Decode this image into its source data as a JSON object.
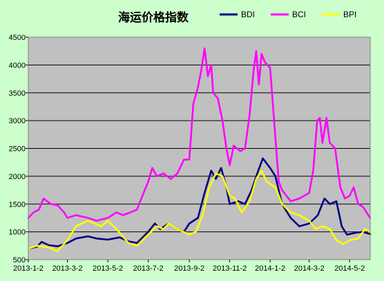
{
  "chart_data": {
    "type": "line",
    "title": "海运价格指数",
    "xlabel": "",
    "ylabel": "",
    "ylim": [
      500,
      4500
    ],
    "yticks": [
      500,
      1000,
      1500,
      2000,
      2500,
      3000,
      3500,
      4000,
      4500
    ],
    "xticks": [
      "2013-1-2",
      "2013-3-2",
      "2013-5-2",
      "2013-7-2",
      "2013-9-2",
      "2013-11-2",
      "2014-1-2",
      "2014-3-2",
      "2014-5-2"
    ],
    "grid": "horizontal",
    "legend_position": "top-right",
    "plot_background": "#c0c0c0",
    "page_background": "#ccffcc",
    "series": [
      {
        "name": "BDI",
        "color": "#000080",
        "points": [
          [
            "2013-01-02",
            700
          ],
          [
            "2013-01-15",
            730
          ],
          [
            "2013-01-22",
            820
          ],
          [
            "2013-02-02",
            760
          ],
          [
            "2013-02-15",
            740
          ],
          [
            "2013-03-02",
            800
          ],
          [
            "2013-03-15",
            880
          ],
          [
            "2013-04-02",
            920
          ],
          [
            "2013-04-15",
            880
          ],
          [
            "2013-05-02",
            860
          ],
          [
            "2013-05-20",
            900
          ],
          [
            "2013-06-02",
            830
          ],
          [
            "2013-06-15",
            800
          ],
          [
            "2013-07-02",
            1000
          ],
          [
            "2013-07-12",
            1150
          ],
          [
            "2013-07-20",
            1050
          ],
          [
            "2013-08-02",
            1150
          ],
          [
            "2013-08-15",
            1050
          ],
          [
            "2013-08-25",
            1000
          ],
          [
            "2013-09-02",
            1150
          ],
          [
            "2013-09-15",
            1250
          ],
          [
            "2013-09-25",
            1700
          ],
          [
            "2013-10-05",
            2100
          ],
          [
            "2013-10-12",
            1950
          ],
          [
            "2013-10-20",
            2150
          ],
          [
            "2013-10-28",
            1800
          ],
          [
            "2013-11-02",
            1500
          ],
          [
            "2013-11-15",
            1550
          ],
          [
            "2013-11-25",
            1500
          ],
          [
            "2013-12-05",
            1750
          ],
          [
            "2013-12-15",
            2100
          ],
          [
            "2013-12-22",
            2320
          ],
          [
            "2014-01-02",
            2150
          ],
          [
            "2014-01-10",
            2000
          ],
          [
            "2014-01-20",
            1500
          ],
          [
            "2014-02-02",
            1250
          ],
          [
            "2014-02-15",
            1100
          ],
          [
            "2014-03-02",
            1150
          ],
          [
            "2014-03-15",
            1300
          ],
          [
            "2014-03-25",
            1600
          ],
          [
            "2014-04-02",
            1500
          ],
          [
            "2014-04-12",
            1550
          ],
          [
            "2014-04-20",
            1100
          ],
          [
            "2014-04-28",
            950
          ],
          [
            "2014-05-10",
            980
          ],
          [
            "2014-05-22",
            1000
          ],
          [
            "2014-06-02",
            960
          ]
        ]
      },
      {
        "name": "BCI",
        "color": "#ff00ff",
        "points": [
          [
            "2013-01-02",
            1250
          ],
          [
            "2013-01-10",
            1350
          ],
          [
            "2013-01-18",
            1400
          ],
          [
            "2013-01-25",
            1600
          ],
          [
            "2013-02-05",
            1500
          ],
          [
            "2013-02-15",
            1480
          ],
          [
            "2013-02-25",
            1350
          ],
          [
            "2013-03-02",
            1250
          ],
          [
            "2013-03-15",
            1300
          ],
          [
            "2013-04-02",
            1250
          ],
          [
            "2013-04-15",
            1200
          ],
          [
            "2013-05-02",
            1250
          ],
          [
            "2013-05-15",
            1350
          ],
          [
            "2013-05-25",
            1300
          ],
          [
            "2013-06-05",
            1350
          ],
          [
            "2013-06-15",
            1400
          ],
          [
            "2013-06-25",
            1700
          ],
          [
            "2013-07-02",
            1900
          ],
          [
            "2013-07-08",
            2150
          ],
          [
            "2013-07-15",
            2000
          ],
          [
            "2013-07-25",
            2050
          ],
          [
            "2013-08-05",
            1950
          ],
          [
            "2013-08-15",
            2050
          ],
          [
            "2013-08-25",
            2300
          ],
          [
            "2013-09-02",
            2300
          ],
          [
            "2013-09-08",
            3300
          ],
          [
            "2013-09-15",
            3600
          ],
          [
            "2013-09-20",
            3900
          ],
          [
            "2013-09-25",
            4300
          ],
          [
            "2013-09-30",
            3800
          ],
          [
            "2013-10-05",
            4000
          ],
          [
            "2013-10-08",
            3500
          ],
          [
            "2013-10-15",
            3400
          ],
          [
            "2013-10-22",
            3000
          ],
          [
            "2013-10-28",
            2500
          ],
          [
            "2013-11-02",
            2200
          ],
          [
            "2013-11-08",
            2550
          ],
          [
            "2013-11-18",
            2450
          ],
          [
            "2013-11-25",
            2500
          ],
          [
            "2013-12-02",
            3100
          ],
          [
            "2013-12-08",
            3900
          ],
          [
            "2013-12-12",
            4250
          ],
          [
            "2013-12-16",
            3650
          ],
          [
            "2013-12-20",
            4200
          ],
          [
            "2013-12-25",
            4050
          ],
          [
            "2014-01-02",
            3950
          ],
          [
            "2014-01-08",
            3000
          ],
          [
            "2014-01-15",
            1900
          ],
          [
            "2014-01-20",
            1750
          ],
          [
            "2014-02-02",
            1550
          ],
          [
            "2014-02-15",
            1600
          ],
          [
            "2014-03-02",
            1700
          ],
          [
            "2014-03-08",
            2100
          ],
          [
            "2014-03-14",
            3000
          ],
          [
            "2014-03-18",
            3050
          ],
          [
            "2014-03-22",
            2600
          ],
          [
            "2014-03-28",
            3050
          ],
          [
            "2014-04-02",
            2600
          ],
          [
            "2014-04-10",
            2500
          ],
          [
            "2014-04-18",
            1800
          ],
          [
            "2014-04-25",
            1600
          ],
          [
            "2014-05-02",
            1650
          ],
          [
            "2014-05-08",
            1800
          ],
          [
            "2014-05-15",
            1500
          ],
          [
            "2014-05-22",
            1450
          ],
          [
            "2014-06-02",
            1250
          ]
        ]
      },
      {
        "name": "BPI",
        "color": "#ffff00",
        "points": [
          [
            "2013-01-02",
            700
          ],
          [
            "2013-01-15",
            750
          ],
          [
            "2013-02-02",
            720
          ],
          [
            "2013-02-15",
            650
          ],
          [
            "2013-03-02",
            850
          ],
          [
            "2013-03-15",
            1100
          ],
          [
            "2013-04-02",
            1200
          ],
          [
            "2013-04-12",
            1150
          ],
          [
            "2013-04-22",
            1100
          ],
          [
            "2013-05-02",
            1200
          ],
          [
            "2013-05-15",
            1050
          ],
          [
            "2013-06-02",
            800
          ],
          [
            "2013-06-15",
            750
          ],
          [
            "2013-07-02",
            950
          ],
          [
            "2013-07-15",
            1100
          ],
          [
            "2013-07-25",
            1050
          ],
          [
            "2013-08-02",
            1150
          ],
          [
            "2013-08-15",
            1050
          ],
          [
            "2013-09-02",
            950
          ],
          [
            "2013-09-12",
            1000
          ],
          [
            "2013-09-22",
            1300
          ],
          [
            "2013-10-02",
            1800
          ],
          [
            "2013-10-12",
            2050
          ],
          [
            "2013-10-22",
            2000
          ],
          [
            "2013-11-02",
            1650
          ],
          [
            "2013-11-10",
            1600
          ],
          [
            "2013-11-20",
            1350
          ],
          [
            "2013-12-02",
            1550
          ],
          [
            "2013-12-12",
            1950
          ],
          [
            "2013-12-20",
            2100
          ],
          [
            "2013-12-28",
            1900
          ],
          [
            "2014-01-10",
            1800
          ],
          [
            "2014-01-20",
            1500
          ],
          [
            "2014-02-02",
            1350
          ],
          [
            "2014-02-15",
            1300
          ],
          [
            "2014-03-02",
            1200
          ],
          [
            "2014-03-12",
            1050
          ],
          [
            "2014-03-22",
            1100
          ],
          [
            "2014-04-02",
            1050
          ],
          [
            "2014-04-12",
            850
          ],
          [
            "2014-04-22",
            780
          ],
          [
            "2014-05-02",
            850
          ],
          [
            "2014-05-15",
            880
          ],
          [
            "2014-05-25",
            1050
          ],
          [
            "2014-06-02",
            1000
          ]
        ]
      }
    ]
  }
}
